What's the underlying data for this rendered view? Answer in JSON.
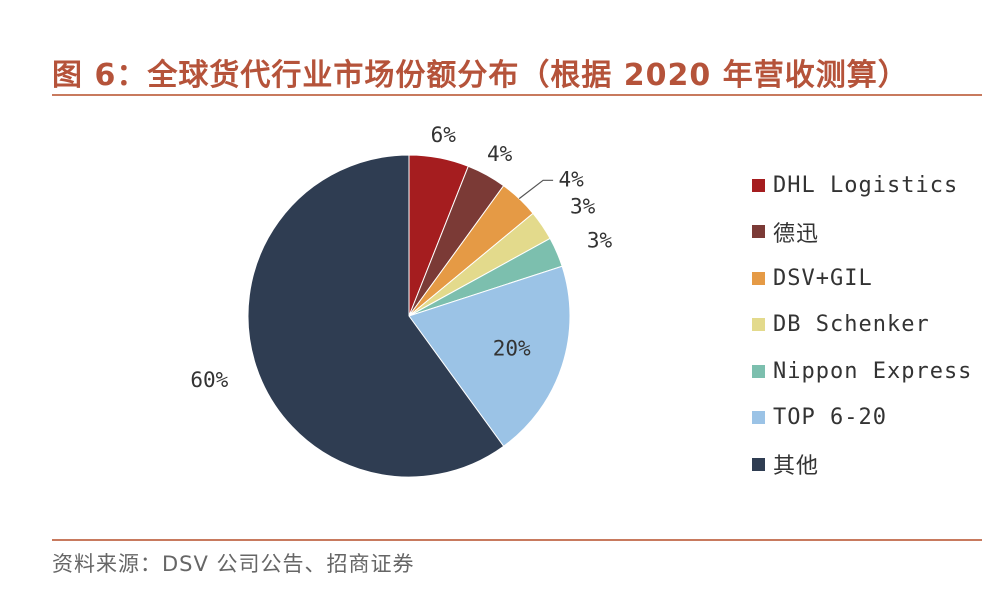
{
  "figure": {
    "title": "图 6：全球货代行业市场份额分布（根据 2020 年营收测算）",
    "source": "资料来源：DSV 公司公告、招商证券"
  },
  "chart_data": {
    "type": "pie",
    "title": "全球货代行业市场份额分布（根据 2020 年营收测算）",
    "start": "12 o'clock",
    "direction": "clockwise",
    "slices": [
      {
        "name": "DHL Logistics",
        "value": 6,
        "label": "6%",
        "color": "#a51d1f"
      },
      {
        "name": "德迅",
        "value": 4,
        "label": "4%",
        "color": "#7b3a36"
      },
      {
        "name": "DSV+GIL",
        "value": 4,
        "label": "4%",
        "color": "#e59a45"
      },
      {
        "name": "DB Schenker",
        "value": 3,
        "label": "3%",
        "color": "#e3da8c"
      },
      {
        "name": "Nippon Express",
        "value": 3,
        "label": "3%",
        "color": "#7cbfae"
      },
      {
        "name": "TOP 6-20",
        "value": 20,
        "label": "20%",
        "color": "#9bc3e6"
      },
      {
        "name": "其他",
        "value": 60,
        "label": "60%",
        "color": "#2f3d52"
      }
    ],
    "legend_position": "right"
  }
}
